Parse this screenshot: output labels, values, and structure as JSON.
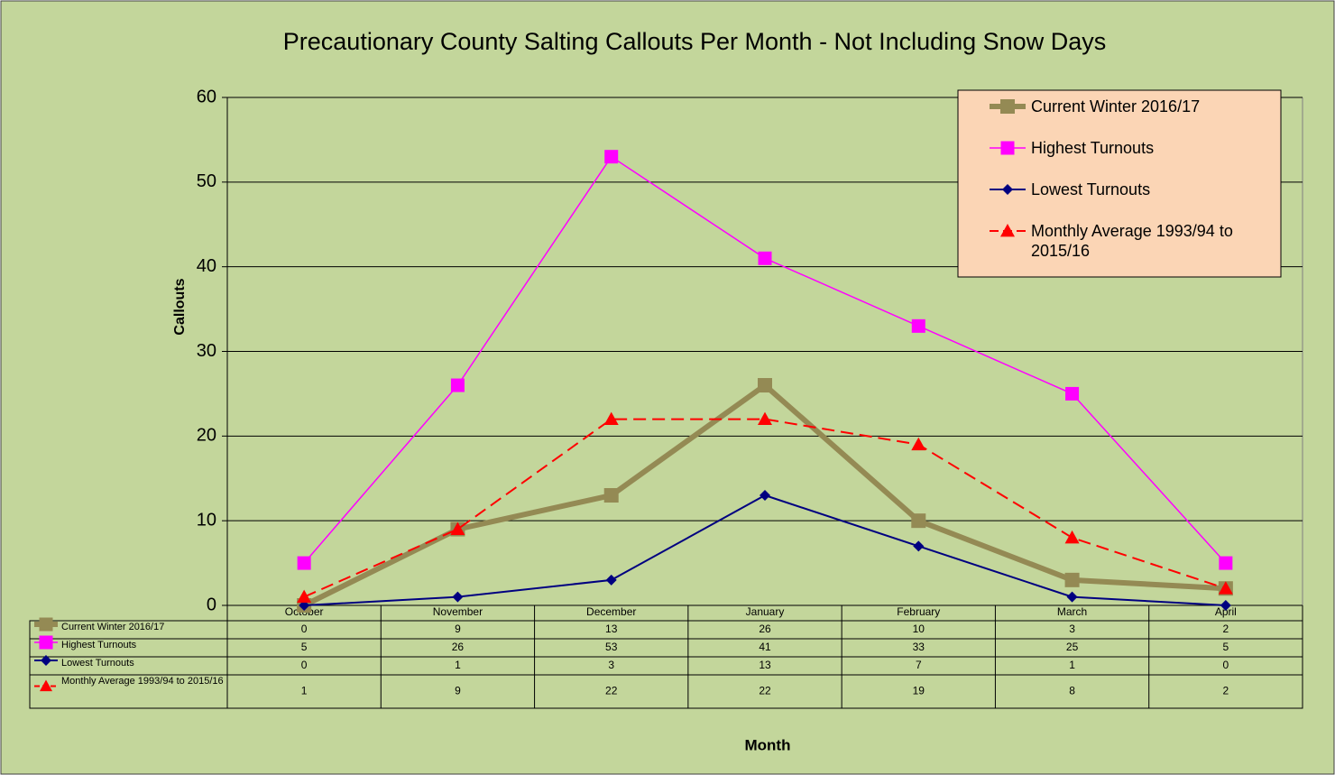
{
  "chart_data": {
    "type": "line",
    "title": "Precautionary County Salting Callouts Per Month - Not Including Snow Days",
    "x_label": "Month",
    "y_label": "Callouts",
    "categories": [
      "October",
      "November",
      "December",
      "January",
      "February",
      "March",
      "April"
    ],
    "ylim": [
      0,
      60
    ],
    "yticks": [
      0,
      10,
      20,
      30,
      40,
      50,
      60
    ],
    "grid": true,
    "legend": "top-right",
    "series": [
      {
        "name": "Current Winter 2016/17",
        "color": "#948a54",
        "marker": "square",
        "values": [
          0,
          9,
          13,
          26,
          10,
          3,
          2
        ]
      },
      {
        "name": "Highest Turnouts",
        "color": "#ff00ff",
        "marker": "square",
        "values": [
          5,
          26,
          53,
          41,
          33,
          25,
          5
        ]
      },
      {
        "name": "Lowest Turnouts",
        "color": "#000080",
        "marker": "diamond",
        "values": [
          0,
          1,
          3,
          13,
          7,
          1,
          0
        ]
      },
      {
        "name": "Monthly Average 1993/94 to 2015/16",
        "color": "#ff0000",
        "marker": "triangle",
        "values": [
          1,
          9,
          22,
          22,
          19,
          8,
          2
        ]
      }
    ]
  }
}
